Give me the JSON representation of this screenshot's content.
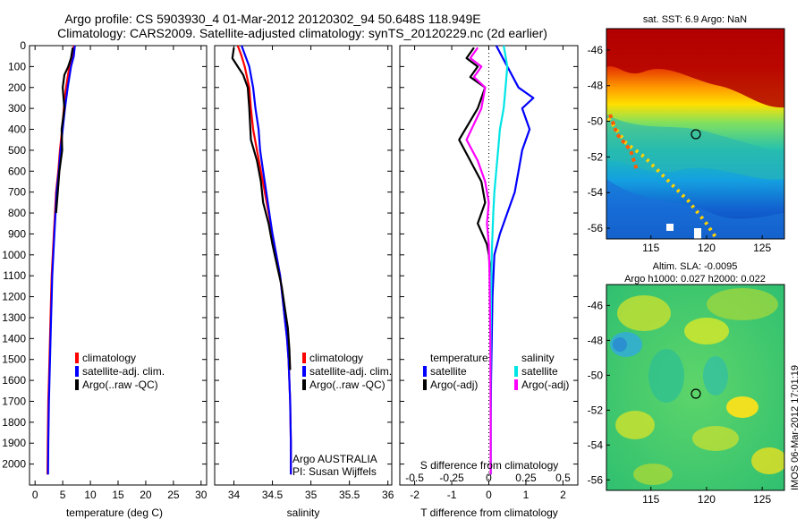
{
  "header": {
    "title_line1": "Argo profile: CS 5903930_4 01-Mar-2012 20120302_94 50.648S 118.949E",
    "title_line2": "Climatology: CARS2009. Satellite-adjusted climatology: synTS_20120229.nc (2d earlier)"
  },
  "colors": {
    "climatology": "#ff0000",
    "satellite": "#0000ff",
    "argo": "#000000",
    "salinity_satellite": "#00e5e5",
    "salinity_argo": "#ff00ff"
  },
  "chart_data": [
    {
      "type": "line",
      "panel": "temperature",
      "xlabel": "temperature (deg C)",
      "xticks": [
        0,
        5,
        10,
        15,
        20,
        25,
        30
      ],
      "xlim": [
        -1,
        31
      ],
      "ylim": [
        2100,
        0
      ],
      "yticks": [
        0,
        100,
        200,
        300,
        400,
        500,
        600,
        700,
        800,
        900,
        1000,
        1100,
        1200,
        1300,
        1400,
        1500,
        1600,
        1700,
        1800,
        1900,
        2000
      ],
      "legend": [
        "climatology",
        "satellite-adj. clim.",
        "Argo(..raw -QC)"
      ],
      "series": [
        {
          "name": "climatology",
          "color": "#ff0000",
          "x": [
            7.0,
            6.8,
            6.2,
            5.6,
            5.2,
            4.9,
            4.5,
            4.2,
            3.8,
            3.6,
            3.4,
            3.2,
            3.0,
            2.9,
            2.8,
            2.7,
            2.6,
            2.5,
            2.4,
            2.3,
            2.25
          ],
          "y": [
            0,
            50,
            100,
            200,
            300,
            400,
            500,
            600,
            700,
            800,
            900,
            1000,
            1100,
            1200,
            1300,
            1400,
            1500,
            1600,
            1700,
            1900,
            2050
          ]
        },
        {
          "name": "satellite-adj. clim.",
          "color": "#0000ff",
          "x": [
            7.2,
            7.0,
            6.5,
            5.9,
            5.4,
            5.0,
            4.6,
            4.3,
            3.9,
            3.7,
            3.5,
            3.3,
            3.1,
            3.0,
            2.9,
            2.8,
            2.7,
            2.6,
            2.5,
            2.4,
            2.35
          ],
          "y": [
            0,
            50,
            100,
            200,
            300,
            400,
            500,
            600,
            700,
            800,
            900,
            1000,
            1100,
            1200,
            1300,
            1400,
            1500,
            1600,
            1700,
            1900,
            2050
          ]
        },
        {
          "name": "Argo(..raw -QC)",
          "color": "#000000",
          "x": [
            6.8,
            6.5,
            6.0,
            5.3,
            5.0,
            5.3,
            4.8,
            4.9,
            4.4,
            4.1,
            3.8
          ],
          "y": [
            10,
            60,
            100,
            140,
            200,
            300,
            400,
            500,
            600,
            700,
            800
          ]
        }
      ]
    },
    {
      "type": "line",
      "panel": "salinity",
      "xlabel": "salinity",
      "xticks": [
        34,
        34.5,
        35,
        35.5,
        36
      ],
      "xlim": [
        33.75,
        36.05
      ],
      "ylim": [
        2100,
        0
      ],
      "legend": [
        "climatology",
        "satellite-adj. clim.",
        "Argo(..raw -QC)"
      ],
      "annotation": [
        "Argo AUSTRALIA",
        "PI: Susan Wijffels"
      ],
      "series": [
        {
          "name": "climatology",
          "color": "#ff0000",
          "x": [
            34.05,
            34.1,
            34.14,
            34.2,
            34.22,
            34.25,
            34.3,
            34.35,
            34.4,
            34.45,
            34.5,
            34.55,
            34.6,
            34.63,
            34.66,
            34.69,
            34.71,
            34.72,
            34.73,
            34.74,
            34.74
          ],
          "y": [
            0,
            50,
            100,
            200,
            300,
            400,
            500,
            600,
            700,
            800,
            900,
            1000,
            1100,
            1200,
            1300,
            1400,
            1500,
            1600,
            1700,
            1900,
            2050
          ]
        },
        {
          "name": "satellite-adj. clim.",
          "color": "#0000ff",
          "x": [
            34.1,
            34.15,
            34.2,
            34.25,
            34.28,
            34.32,
            34.34,
            34.38,
            34.42,
            34.46,
            34.5,
            34.55,
            34.6,
            34.63,
            34.66,
            34.69,
            34.71,
            34.72,
            34.73,
            34.74,
            34.74
          ],
          "y": [
            0,
            50,
            100,
            200,
            300,
            400,
            500,
            600,
            700,
            800,
            900,
            1000,
            1100,
            1200,
            1300,
            1400,
            1500,
            1600,
            1700,
            1900,
            2050
          ]
        },
        {
          "name": "Argo(..raw -QC)",
          "color": "#000000",
          "x": [
            34.0,
            33.98,
            34.05,
            34.12,
            34.18,
            34.2,
            34.22,
            34.3,
            34.35,
            34.38,
            34.45,
            34.5,
            34.56,
            34.62,
            34.66,
            34.7,
            34.72,
            34.73
          ],
          "y": [
            10,
            60,
            100,
            140,
            200,
            300,
            450,
            550,
            650,
            750,
            850,
            950,
            1050,
            1150,
            1250,
            1350,
            1450,
            1550
          ]
        }
      ]
    },
    {
      "type": "line",
      "panel": "difference",
      "xlabel": "T difference from climatology",
      "xlabel_top": "S difference from climatology",
      "xticks": [
        -2,
        -1,
        0,
        1,
        2
      ],
      "xticks_top": [
        "-0.5",
        "-0.25",
        "0",
        "0.25",
        "0.5"
      ],
      "xlim": [
        -2.4,
        2.4
      ],
      "ylim": [
        2100,
        0
      ],
      "legend_temperature_title": "temperature",
      "legend_salinity_title": "salinity",
      "legend": [
        "satellite",
        "Argo(-adj)",
        "satellite",
        "Argo(-adj)"
      ],
      "series": [
        {
          "name": "satellite",
          "group": "temperature",
          "color": "#0000ff",
          "x": [
            0.2,
            0.35,
            0.5,
            0.8,
            1.2,
            0.9,
            1.1,
            0.9,
            0.8,
            0.7,
            0.5,
            0.3,
            0.15,
            0.1,
            0.08,
            0.06,
            0.05,
            0.05,
            0.05,
            0.05
          ],
          "y": [
            0,
            50,
            100,
            200,
            250,
            300,
            400,
            500,
            600,
            700,
            800,
            900,
            1000,
            1200,
            1400,
            1600,
            1800,
            1900,
            2000,
            2050
          ]
        },
        {
          "name": "Argo(-adj)",
          "group": "temperature",
          "color": "#000000",
          "x": [
            -0.4,
            -0.6,
            -0.3,
            -0.5,
            -0.1,
            -0.3,
            -0.8,
            -0.5,
            -0.2,
            -0.1,
            -0.3,
            -0.05,
            0.0,
            0.05
          ],
          "y": [
            10,
            60,
            100,
            150,
            200,
            300,
            450,
            550,
            650,
            750,
            850,
            950,
            1000,
            1100
          ]
        },
        {
          "name": "satellite",
          "group": "salinity",
          "color": "#00e5e5",
          "x": [
            0.4,
            0.45,
            0.5,
            0.45,
            0.4,
            0.3,
            0.25,
            0.2,
            0.15,
            0.12,
            0.1,
            0.08,
            0.06,
            0.05,
            0.05,
            0.05,
            0.05
          ],
          "y": [
            0,
            50,
            100,
            200,
            300,
            400,
            500,
            600,
            700,
            800,
            900,
            1000,
            1200,
            1400,
            1600,
            1800,
            2050
          ]
        },
        {
          "name": "Argo(-adj)",
          "group": "salinity",
          "color": "#ff00ff",
          "x": [
            -0.3,
            -0.5,
            -0.2,
            -0.4,
            -0.1,
            -0.2,
            -0.6,
            -0.3,
            -0.1,
            0.0,
            -0.05,
            0.0,
            0.02,
            0.04,
            0.05,
            0.05
          ],
          "y": [
            10,
            60,
            100,
            150,
            200,
            300,
            450,
            550,
            650,
            750,
            850,
            950,
            1100,
            1400,
            1800,
            2050
          ]
        }
      ]
    },
    {
      "type": "heatmap",
      "panel": "sst_map",
      "title": "sat. SST: 6.9 Argo: NaN",
      "xticks": [
        "115",
        "120",
        "125"
      ],
      "yticks": [
        "-46",
        "-48",
        "-50",
        "-52",
        "-54",
        "-56"
      ],
      "marker": {
        "lon": 118.949,
        "lat": -50.648
      }
    },
    {
      "type": "heatmap",
      "panel": "sla_map",
      "title_line1": "Altim. SLA: -0.0095",
      "title_line2": "Argo h1000: 0.027 h2000: 0.022",
      "xticks": [
        "115",
        "120",
        "125"
      ],
      "yticks": [
        "-46",
        "-48",
        "-50",
        "-52",
        "-54",
        "-56"
      ],
      "marker": {
        "lon": 118.949,
        "lat": -50.648
      }
    }
  ],
  "footer": {
    "side_label": "IMOS 06-Mar-2012 17:01:19"
  }
}
